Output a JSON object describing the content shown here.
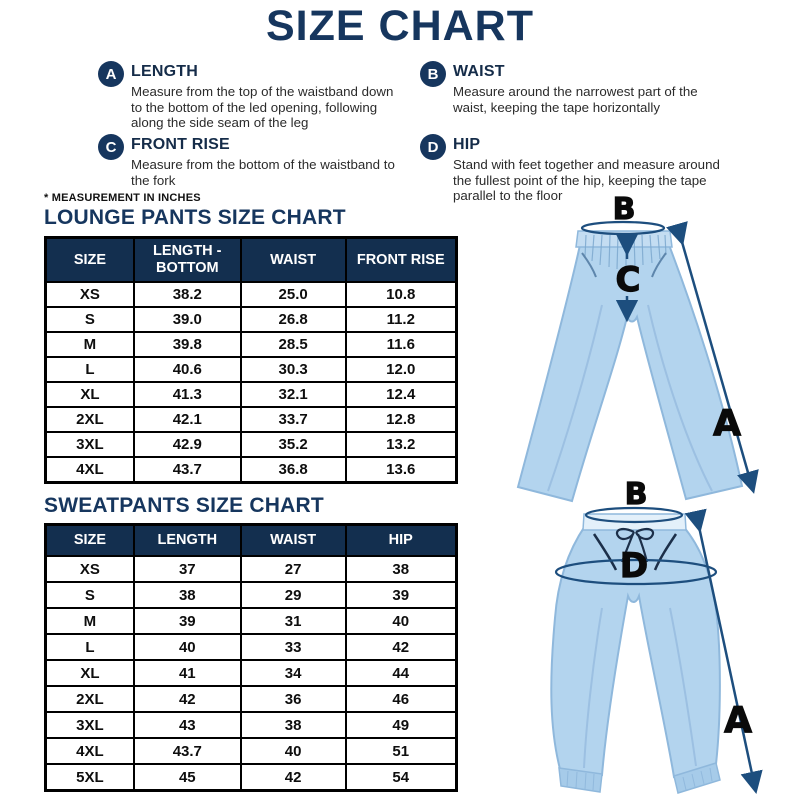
{
  "title": "SIZE CHART",
  "note": "* MEASUREMENT IN INCHES",
  "measurements": [
    {
      "letter": "A",
      "name": "LENGTH",
      "desc": "Measure from the top of the waistband down to the bottom of the led opening, following along the side seam of the leg"
    },
    {
      "letter": "B",
      "name": "WAIST",
      "desc": "Measure around the narrowest part of the waist, keeping the tape horizontally"
    },
    {
      "letter": "C",
      "name": "FRONT RISE",
      "desc": "Measure from the bottom of the waistband to the fork"
    },
    {
      "letter": "D",
      "name": "HIP",
      "desc": "Stand with feet together and measure around the fullest point of the hip, keeping the tape parallel to the floor"
    }
  ],
  "lounge_chart": {
    "title": "LOUNGE PANTS SIZE CHART",
    "headers": [
      "SIZE",
      "LENGTH - BOTTOM",
      "WAIST",
      "FRONT RISE"
    ],
    "rows": [
      [
        "XS",
        "38.2",
        "25.0",
        "10.8"
      ],
      [
        "S",
        "39.0",
        "26.8",
        "11.2"
      ],
      [
        "M",
        "39.8",
        "28.5",
        "11.6"
      ],
      [
        "L",
        "40.6",
        "30.3",
        "12.0"
      ],
      [
        "XL",
        "41.3",
        "32.1",
        "12.4"
      ],
      [
        "2XL",
        "42.1",
        "33.7",
        "12.8"
      ],
      [
        "3XL",
        "42.9",
        "35.2",
        "13.2"
      ],
      [
        "4XL",
        "43.7",
        "36.8",
        "13.6"
      ]
    ]
  },
  "sweat_chart": {
    "title": "SWEATPANTS SIZE CHART",
    "headers": [
      "SIZE",
      "LENGTH",
      "WAIST",
      "HIP"
    ],
    "rows": [
      [
        "XS",
        "37",
        "27",
        "38"
      ],
      [
        "S",
        "38",
        "29",
        "39"
      ],
      [
        "M",
        "39",
        "31",
        "40"
      ],
      [
        "L",
        "40",
        "33",
        "42"
      ],
      [
        "XL",
        "41",
        "34",
        "44"
      ],
      [
        "2XL",
        "42",
        "36",
        "46"
      ],
      [
        "3XL",
        "43",
        "38",
        "49"
      ],
      [
        "4XL",
        "43.7",
        "40",
        "51"
      ],
      [
        "5XL",
        "45",
        "42",
        "54"
      ]
    ]
  },
  "diagram_labels": {
    "lounge": [
      "B",
      "C",
      "A"
    ],
    "sweat": [
      "B",
      "D",
      "A"
    ]
  },
  "colors": {
    "navy": "#16365e",
    "table_header_bg": "#132f4f",
    "pants_blue": "#b3d4ee",
    "pants_shade": "#8fb8dc",
    "arrow_navy": "#1d4e7e",
    "letter_black": "#0a0a0a"
  }
}
